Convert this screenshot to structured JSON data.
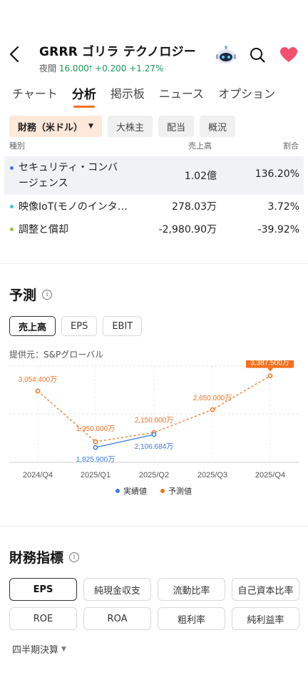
{
  "header": {
    "ticker": "GRRR",
    "company": "ゴリラ テクノロジー",
    "session": "夜間",
    "price": "16.000",
    "change": "+0.200 +1.27%"
  },
  "tabs": [
    "チャート",
    "分析",
    "掲示板",
    "ニュース",
    "オプション"
  ],
  "filters": {
    "active_label": "財務（米ドル）",
    "items": [
      "大株主",
      "配当",
      "概況"
    ]
  },
  "revenue_table": {
    "col_type": "種別",
    "col_revenue": "売上高",
    "col_ratio": "割合",
    "rows": [
      {
        "name_line1": "セキュリティ・コンバ",
        "name_line2": "ージェンス",
        "revenue": "1.02億",
        "ratio": "136.20%",
        "color": "#3b7be0"
      },
      {
        "name_line1": "映像IoT(モノのインタ…",
        "revenue": "278.03万",
        "ratio": "3.72%",
        "color": "#3cc6d6"
      },
      {
        "name_line1": "調整と償却",
        "revenue": "-2,980.90万",
        "ratio": "-39.92%",
        "color": "#8ac640"
      }
    ]
  },
  "forecast": {
    "title": "予測",
    "info": "i",
    "options": [
      "売上高",
      "EPS",
      "EBIT"
    ],
    "provider": "提供元：S&Pグローバル"
  },
  "chart_data": {
    "type": "line",
    "categories": [
      "2024/Q4",
      "2025/Q1",
      "2025/Q2",
      "2025/Q3",
      "2025/Q4"
    ],
    "series": [
      {
        "name": "実績値",
        "color": "#3b7be0",
        "values": [
          null,
          1825.9,
          2106.684,
          null,
          null
        ],
        "labels": [
          "",
          "1,825.900万",
          "2,106.684万",
          "",
          ""
        ]
      },
      {
        "name": "予測値",
        "color": "#f2701e",
        "values": [
          3054.4,
          1950.0,
          2150.0,
          2650.0,
          3387.5
        ],
        "labels": [
          "3,054.400万",
          "1,950.000万",
          "2,150.000万",
          "2,650.000万",
          "3,387.500万"
        ]
      }
    ],
    "ylim": [
      1500,
      3600
    ],
    "grid": true,
    "legend": "bottom"
  },
  "indicators": {
    "title": "財務指標",
    "info": "i",
    "items": [
      "EPS",
      "純現金収支",
      "流動比率",
      "自己資本比率",
      "ROE",
      "ROA",
      "粗利率",
      "純利益率"
    ],
    "period": "四半期決算"
  }
}
